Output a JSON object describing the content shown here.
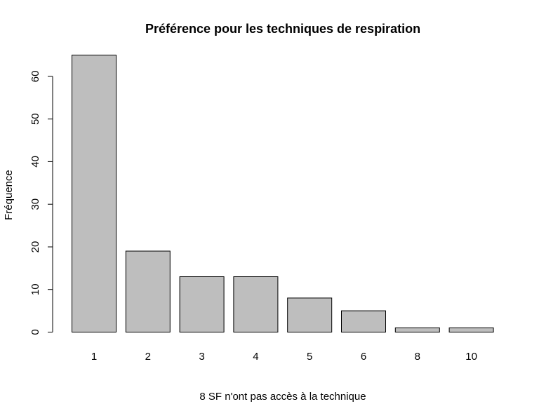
{
  "chart_data": {
    "type": "bar",
    "title": "Préférence pour les techniques de respiration",
    "xlabel": "8 SF n'ont pas accès à la technique",
    "ylabel": "Fréquence",
    "categories": [
      "1",
      "2",
      "3",
      "4",
      "5",
      "6",
      "8",
      "10"
    ],
    "values": [
      65,
      19,
      13,
      13,
      8,
      5,
      1,
      1
    ],
    "ylim": [
      0,
      65
    ],
    "yticks": [
      0,
      10,
      20,
      30,
      40,
      50,
      60
    ],
    "grid": false,
    "legend": "none",
    "colors": {
      "bar_fill": "#bebebe",
      "bar_stroke": "#000000"
    }
  }
}
